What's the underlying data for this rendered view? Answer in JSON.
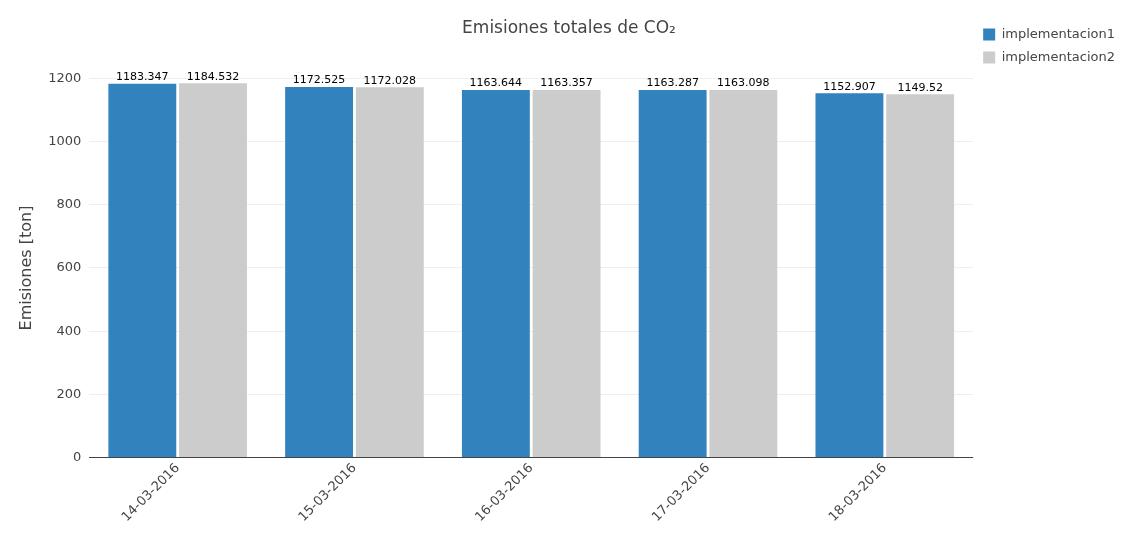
{
  "chart_data": {
    "type": "bar",
    "title": "Emisiones totales de CO₂",
    "ylabel": "Emisiones [ton]",
    "categories": [
      "14-03-2016",
      "15-03-2016",
      "16-03-2016",
      "17-03-2016",
      "18-03-2016"
    ],
    "series": [
      {
        "name": "implementacion1",
        "color": "#3182bd",
        "values": [
          1183.347,
          1172.525,
          1163.644,
          1163.287,
          1152.907
        ]
      },
      {
        "name": "implementacion2",
        "color": "#cccccc",
        "values": [
          1184.532,
          1172.028,
          1163.357,
          1163.098,
          1149.52
        ]
      }
    ],
    "ylim": [
      0,
      1200
    ],
    "yticks": [
      0,
      200,
      400,
      600,
      800,
      1000,
      1200
    ],
    "grid": "y",
    "legend": "right",
    "data_labels": true
  }
}
